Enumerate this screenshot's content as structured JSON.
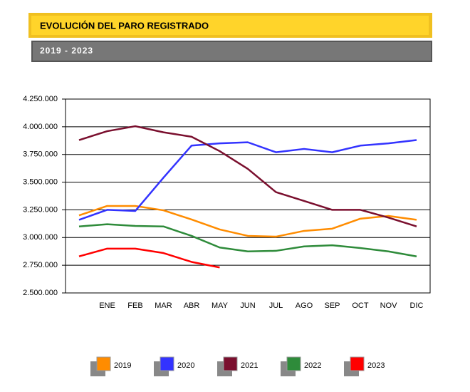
{
  "chart_data": {
    "type": "line",
    "title": "EVOLUCIÓN DEL PARO REGISTRADO",
    "subtitle": "2019 - 2023",
    "categories": [
      null,
      "ENE",
      "FEB",
      "MAR",
      "ABR",
      "MAY",
      "JUN",
      "JUL",
      "AGO",
      "SEP",
      "OCT",
      "NOV",
      "DIC"
    ],
    "series": [
      {
        "name": "2019",
        "color": "#ff8c00",
        "values": [
          3200000,
          3285000,
          3285000,
          3246000,
          3163000,
          3073000,
          3015000,
          3008000,
          3060000,
          3080000,
          3170000,
          3195000,
          3160000
        ]
      },
      {
        "name": "2020",
        "color": "#3333ff",
        "values": [
          3160000,
          3250000,
          3240000,
          3540000,
          3830000,
          3850000,
          3860000,
          3770000,
          3800000,
          3770000,
          3830000,
          3850000,
          3880000
        ]
      },
      {
        "name": "2021",
        "color": "#7a0f2e",
        "values": [
          3880000,
          3960000,
          4005000,
          3950000,
          3910000,
          3780000,
          3620000,
          3410000,
          3330000,
          3250000,
          3250000,
          3180000,
          3100000
        ]
      },
      {
        "name": "2022",
        "color": "#2e8b3a",
        "values": [
          3100000,
          3120000,
          3105000,
          3100000,
          3015000,
          2910000,
          2875000,
          2880000,
          2920000,
          2930000,
          2905000,
          2875000,
          2830000
        ]
      },
      {
        "name": "2023",
        "color": "#ff0000",
        "values": [
          2830000,
          2900000,
          2900000,
          2860000,
          2780000,
          2730000,
          null,
          null,
          null,
          null,
          null,
          null,
          null
        ]
      }
    ],
    "ylim": [
      2500000,
      4250000
    ],
    "yticks": [
      {
        "value": 2500000,
        "label": "2.500.000"
      },
      {
        "value": 2750000,
        "label": "2.750.000"
      },
      {
        "value": 3000000,
        "label": "3.000.000"
      },
      {
        "value": 3250000,
        "label": "3.250.000"
      },
      {
        "value": 3500000,
        "label": "3.500.000"
      },
      {
        "value": 3750000,
        "label": "3.750.000"
      },
      {
        "value": 4000000,
        "label": "4.000.000"
      },
      {
        "value": 4250000,
        "label": "4.250.000"
      }
    ],
    "grid": true
  }
}
